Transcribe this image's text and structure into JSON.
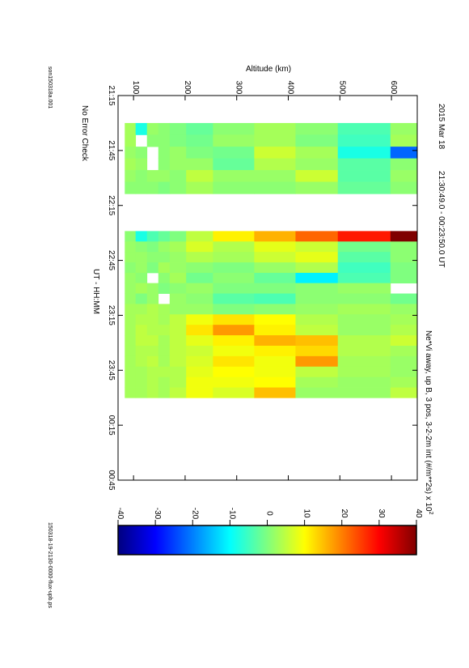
{
  "header": {
    "date": "2015 Mar 18",
    "time_range": "21:30:49.0 - 00:23:50.0 UT",
    "measurement": "Ne*Vi away, up B, 3 pos, 3-2-2m int (#/m**2s) x 10",
    "exponent": "2"
  },
  "footer": {
    "left_file": "son150318a.001",
    "status": "No Error Check",
    "right_file": "150318-19-2130-0000-flux-upb.ps"
  },
  "chart_data": {
    "type": "heatmap",
    "xlabel": "UT - HH:MM",
    "ylabel": "Altitude (km)",
    "x_ticks": [
      "21:15",
      "21:45",
      "22:15",
      "22:45",
      "23:15",
      "23:45",
      "00:15",
      "00:45"
    ],
    "y_ticks": [
      "100",
      "200",
      "300",
      "400",
      "500",
      "600"
    ],
    "x_range_minutes": [
      0,
      210
    ],
    "y_range_km": [
      70,
      650
    ],
    "altitude_bins_km": [
      [
        83,
        104
      ],
      [
        104,
        126
      ],
      [
        126,
        148
      ],
      [
        148,
        170
      ],
      [
        170,
        202
      ],
      [
        202,
        254
      ],
      [
        254,
        334
      ],
      [
        334,
        414
      ],
      [
        414,
        496
      ],
      [
        496,
        598
      ],
      [
        598,
        650
      ]
    ],
    "columns": [
      {
        "t0": 15.0,
        "t1": 21.4,
        "values": [
          3,
          -8,
          2,
          1,
          0,
          -2,
          1,
          3,
          1,
          -4,
          2
        ]
      },
      {
        "t0": 21.4,
        "t1": 27.9,
        "values": [
          3,
          null,
          1,
          1,
          0,
          -1,
          2,
          3,
          0,
          -5,
          3
        ]
      },
      {
        "t0": 27.9,
        "t1": 34.3,
        "values": [
          2,
          1,
          null,
          1,
          2,
          0,
          -1,
          6,
          3,
          -8,
          -22
        ]
      },
      {
        "t0": 34.3,
        "t1": 40.7,
        "values": [
          3,
          2,
          null,
          1,
          2,
          2,
          -2,
          4,
          2,
          -3,
          1
        ]
      },
      {
        "t0": 40.7,
        "t1": 47.1,
        "values": [
          2,
          1,
          2,
          2,
          1,
          5,
          2,
          2,
          6,
          -3,
          2
        ]
      },
      {
        "t0": 47.1,
        "t1": 53.6,
        "values": [
          1,
          1,
          1,
          0,
          1,
          3,
          1,
          1,
          2,
          -2,
          1
        ]
      },
      {
        "t0": 74.0,
        "t1": 79.7,
        "values": [
          1,
          -8,
          -4,
          -2,
          0,
          5,
          11,
          16,
          22,
          28,
          50
        ]
      },
      {
        "t0": 79.7,
        "t1": 85.4,
        "values": [
          2,
          1,
          0,
          2,
          3,
          7,
          4,
          8,
          6,
          -1,
          1
        ]
      },
      {
        "t0": 85.4,
        "t1": 91.1,
        "values": [
          2,
          2,
          1,
          1,
          2,
          4,
          3,
          6,
          8,
          -3,
          1
        ]
      },
      {
        "t0": 91.1,
        "t1": 96.8,
        "values": [
          1,
          2,
          0,
          3,
          2,
          1,
          0,
          2,
          4,
          -5,
          0
        ]
      },
      {
        "t0": 96.8,
        "t1": 102.4,
        "values": [
          2,
          1,
          null,
          1,
          3,
          -1,
          1,
          -2,
          -11,
          -4,
          0
        ]
      },
      {
        "t0": 102.4,
        "t1": 108.1,
        "values": [
          2,
          3,
          2,
          0,
          1,
          2,
          0,
          0,
          1,
          2,
          null
        ]
      },
      {
        "t0": 108.1,
        "t1": 113.8,
        "values": [
          2,
          0,
          2,
          null,
          2,
          1,
          -3,
          -4,
          1,
          1,
          -1
        ]
      },
      {
        "t0": 113.8,
        "t1": 119.5,
        "values": [
          3,
          3,
          4,
          3,
          2,
          2,
          0,
          1,
          2,
          3,
          2
        ]
      },
      {
        "t0": 119.5,
        "t1": 125.2,
        "values": [
          3,
          4,
          4,
          3,
          5,
          9,
          12,
          10,
          4,
          2,
          3
        ]
      },
      {
        "t0": 125.2,
        "t1": 130.9,
        "values": [
          3,
          5,
          4,
          4,
          5,
          12,
          18,
          11,
          5,
          2,
          4
        ]
      },
      {
        "t0": 130.9,
        "t1": 136.6,
        "values": [
          3,
          5,
          5,
          3,
          5,
          8,
          11,
          16,
          15,
          4,
          6
        ]
      },
      {
        "t0": 136.6,
        "t1": 142.3,
        "values": [
          3,
          4,
          4,
          3,
          5,
          6,
          9,
          11,
          13,
          4,
          3
        ]
      },
      {
        "t0": 142.3,
        "t1": 148.0,
        "values": [
          3,
          4,
          5,
          3,
          5,
          7,
          12,
          9,
          18,
          3,
          2
        ]
      },
      {
        "t0": 148.0,
        "t1": 153.7,
        "values": [
          3,
          3,
          4,
          4,
          4,
          8,
          10,
          9,
          5,
          3,
          2
        ]
      },
      {
        "t0": 153.7,
        "t1": 159.4,
        "values": [
          3,
          3,
          4,
          3,
          4,
          9,
          9,
          10,
          3,
          2,
          3
        ]
      },
      {
        "t0": 159.4,
        "t1": 165.0,
        "values": [
          3,
          3,
          4,
          3,
          5,
          9,
          7,
          15,
          2,
          2,
          5
        ]
      }
    ],
    "colorbar": {
      "range": [
        -40,
        40
      ],
      "ticks": [
        "-40",
        "-30",
        "-20",
        "-10",
        "0",
        "10",
        "20",
        "30",
        "40"
      ],
      "colormap": "jet",
      "colors": [
        "#00007f",
        "#0000ff",
        "#007fff",
        "#00ffff",
        "#7fff7f",
        "#ffff00",
        "#ff7f00",
        "#ff0000",
        "#7f0000"
      ]
    }
  }
}
